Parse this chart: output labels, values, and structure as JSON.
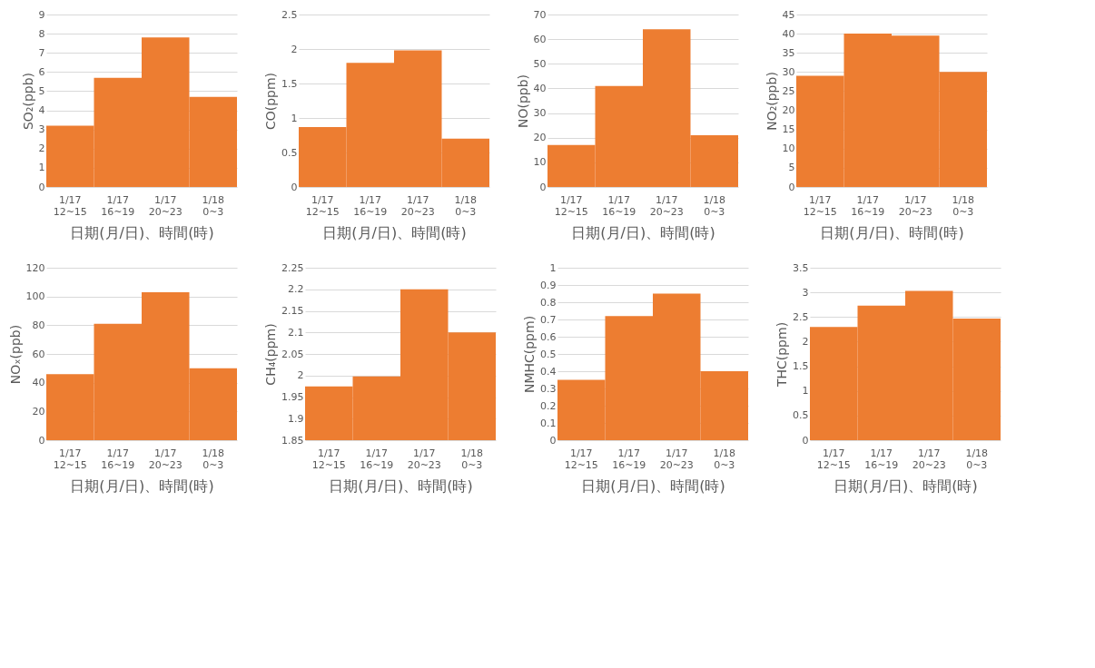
{
  "chart_data": [
    {
      "type": "bar",
      "categories": [
        "1/17\n12~15",
        "1/17\n16~19",
        "1/17\n20~23",
        "1/18\n0~3"
      ],
      "values": [
        3.2,
        5.7,
        7.8,
        4.7
      ],
      "color": "#ed7d31",
      "ylabel": "SO₂(ppb)",
      "xlabel": "日期(月/日)、時間(時)",
      "ylim": [
        0,
        9
      ],
      "yticks": [
        0,
        1,
        2,
        3,
        4,
        5,
        6,
        7,
        8,
        9
      ],
      "grid": "y"
    },
    {
      "type": "bar",
      "categories": [
        "1/17\n12~15",
        "1/17\n16~19",
        "1/17\n20~23",
        "1/18\n0~3"
      ],
      "values": [
        0.87,
        1.8,
        1.98,
        0.7
      ],
      "color": "#ed7d31",
      "ylabel": "CO(ppm)",
      "xlabel": "日期(月/日)、時間(時)",
      "ylim": [
        0,
        2.5
      ],
      "yticks": [
        0,
        0.5,
        1,
        1.5,
        2,
        2.5
      ],
      "grid": "y"
    },
    {
      "type": "bar",
      "categories": [
        "1/17\n12~15",
        "1/17\n16~19",
        "1/17\n20~23",
        "1/18\n0~3"
      ],
      "values": [
        17,
        41,
        64,
        21
      ],
      "color": "#ed7d31",
      "ylabel": "NO(ppb)",
      "xlabel": "日期(月/日)、時間(時)",
      "ylim": [
        0,
        70
      ],
      "yticks": [
        0,
        10,
        20,
        30,
        40,
        50,
        60,
        70
      ],
      "grid": "y"
    },
    {
      "type": "bar",
      "categories": [
        "1/17\n12~15",
        "1/17\n16~19",
        "1/17\n20~23",
        "1/18\n0~3"
      ],
      "values": [
        29,
        40,
        39.5,
        30
      ],
      "color": "#ed7d31",
      "ylabel": "NO₂(ppb)",
      "xlabel": "日期(月/日)、時間(時)",
      "ylim": [
        0,
        45
      ],
      "yticks": [
        0,
        5,
        10,
        15,
        20,
        25,
        30,
        35,
        40,
        45
      ],
      "grid": "y"
    },
    {
      "type": "bar",
      "categories": [
        "1/17\n12~15",
        "1/17\n16~19",
        "1/17\n20~23",
        "1/18\n0~3"
      ],
      "values": [
        46,
        81,
        103,
        50
      ],
      "color": "#ed7d31",
      "ylabel": "NOₓ(ppb)",
      "xlabel": "日期(月/日)、時間(時)",
      "ylim": [
        0,
        120
      ],
      "yticks": [
        0,
        20,
        40,
        60,
        80,
        100,
        120
      ],
      "grid": "y"
    },
    {
      "type": "bar",
      "categories": [
        "1/17\n12~15",
        "1/17\n16~19",
        "1/17\n20~23",
        "1/18\n0~3"
      ],
      "values": [
        1.975,
        1.998,
        2.2,
        2.1
      ],
      "color": "#ed7d31",
      "ylabel": "CH₄(ppm)",
      "xlabel": "日期(月/日)、時間(時)",
      "ylim": [
        1.85,
        2.25
      ],
      "yticks": [
        1.85,
        1.9,
        1.95,
        2,
        2.05,
        2.1,
        2.15,
        2.2,
        2.25
      ],
      "grid": "y"
    },
    {
      "type": "bar",
      "categories": [
        "1/17\n12~15",
        "1/17\n16~19",
        "1/17\n20~23",
        "1/18\n0~3"
      ],
      "values": [
        0.35,
        0.72,
        0.85,
        0.4
      ],
      "color": "#ed7d31",
      "ylabel": "NMHC(ppm)",
      "xlabel": "日期(月/日)、時間(時)",
      "ylim": [
        0,
        1
      ],
      "yticks": [
        0,
        0.1,
        0.2,
        0.3,
        0.4,
        0.5,
        0.6,
        0.7,
        0.8,
        0.9,
        1
      ],
      "grid": "y"
    },
    {
      "type": "bar",
      "categories": [
        "1/17\n12~15",
        "1/17\n16~19",
        "1/17\n20~23",
        "1/18\n0~3"
      ],
      "values": [
        2.3,
        2.73,
        3.03,
        2.47
      ],
      "color": "#ed7d31",
      "ylabel": "THC(ppm)",
      "xlabel": "日期(月/日)、時間(時)",
      "ylim": [
        0,
        3.5
      ],
      "yticks": [
        0,
        0.5,
        1,
        1.5,
        2,
        2.5,
        3,
        3.5
      ],
      "grid": "y"
    }
  ]
}
